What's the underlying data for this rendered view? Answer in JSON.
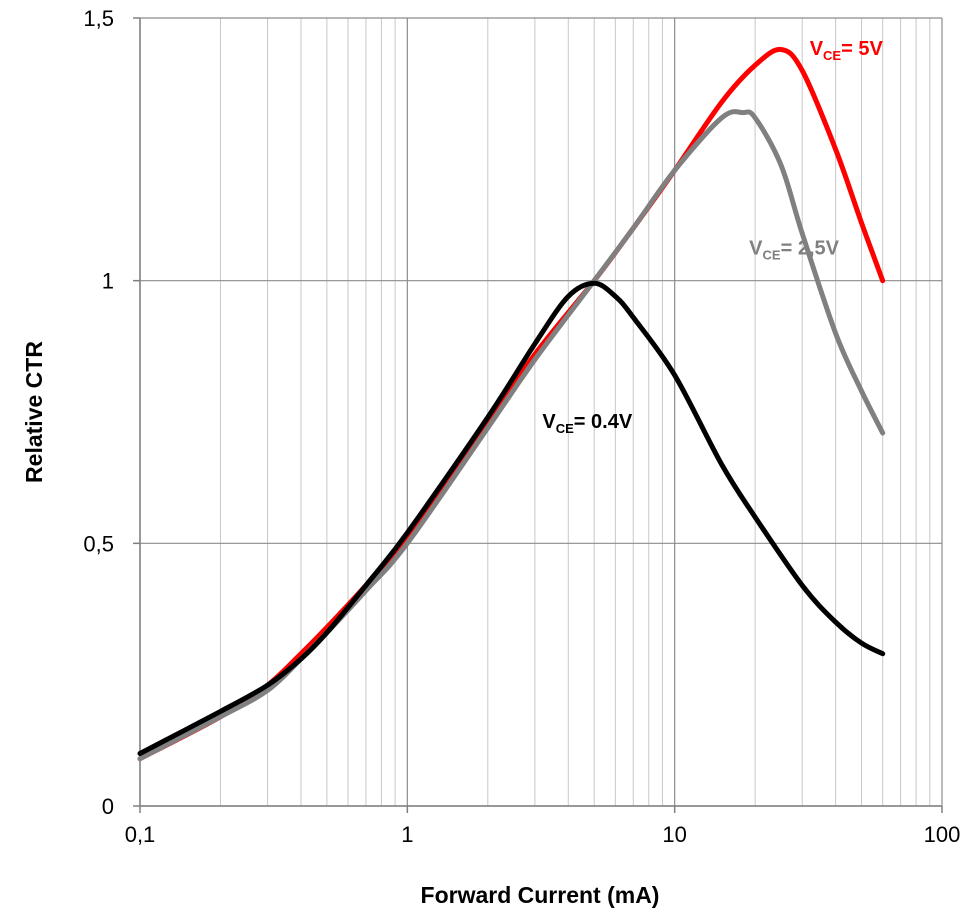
{
  "chart_data": {
    "type": "line",
    "title": "",
    "xlabel": "Forward Current (mA)",
    "ylabel": "Relative CTR",
    "x_scale": "log",
    "xlim": [
      0.1,
      100
    ],
    "ylim": [
      0,
      1.5
    ],
    "x_ticks": [
      0.1,
      1,
      10,
      100
    ],
    "x_tick_labels": [
      "0,1",
      "1",
      "10",
      "100"
    ],
    "y_ticks": [
      0,
      0.5,
      1,
      1.5
    ],
    "y_tick_labels": [
      "0",
      "0,5",
      "1",
      "1,5"
    ],
    "grid": true,
    "legend": "none",
    "series": [
      {
        "name": "VCE= 5V",
        "label_main": "V",
        "label_sub": "CE",
        "label_rest": "= 5V",
        "color": "#ff0000",
        "x": [
          0.1,
          0.2,
          0.3,
          0.4,
          0.5,
          0.7,
          1,
          2,
          3,
          5,
          7,
          10,
          15,
          20,
          25,
          30,
          40,
          50,
          60
        ],
        "y": [
          0.09,
          0.17,
          0.23,
          0.29,
          0.34,
          0.42,
          0.51,
          0.73,
          0.86,
          1.0,
          1.1,
          1.21,
          1.34,
          1.41,
          1.44,
          1.4,
          1.25,
          1.11,
          1.0
        ]
      },
      {
        "name": "VCE= 2,5V",
        "label_main": "V",
        "label_sub": "CE",
        "label_rest": "= 2,5V",
        "color": "#808080",
        "x": [
          0.1,
          0.2,
          0.3,
          0.4,
          0.5,
          0.7,
          1,
          2,
          3,
          5,
          7,
          10,
          15,
          18,
          20,
          25,
          30,
          40,
          50,
          60
        ],
        "y": [
          0.09,
          0.17,
          0.22,
          0.28,
          0.33,
          0.41,
          0.5,
          0.72,
          0.85,
          1.0,
          1.1,
          1.21,
          1.31,
          1.32,
          1.31,
          1.22,
          1.09,
          0.9,
          0.79,
          0.71
        ]
      },
      {
        "name": "VCE= 0.4V",
        "label_main": "V",
        "label_sub": "CE",
        "label_rest": "= 0.4V",
        "color": "#000000",
        "x": [
          0.1,
          0.2,
          0.3,
          0.4,
          0.5,
          0.7,
          1,
          2,
          3,
          4,
          5,
          6,
          7,
          10,
          15,
          20,
          30,
          40,
          50,
          60
        ],
        "y": [
          0.1,
          0.18,
          0.23,
          0.28,
          0.33,
          0.42,
          0.52,
          0.74,
          0.88,
          0.97,
          0.995,
          0.97,
          0.93,
          0.82,
          0.65,
          0.55,
          0.42,
          0.35,
          0.31,
          0.29
        ]
      }
    ]
  }
}
